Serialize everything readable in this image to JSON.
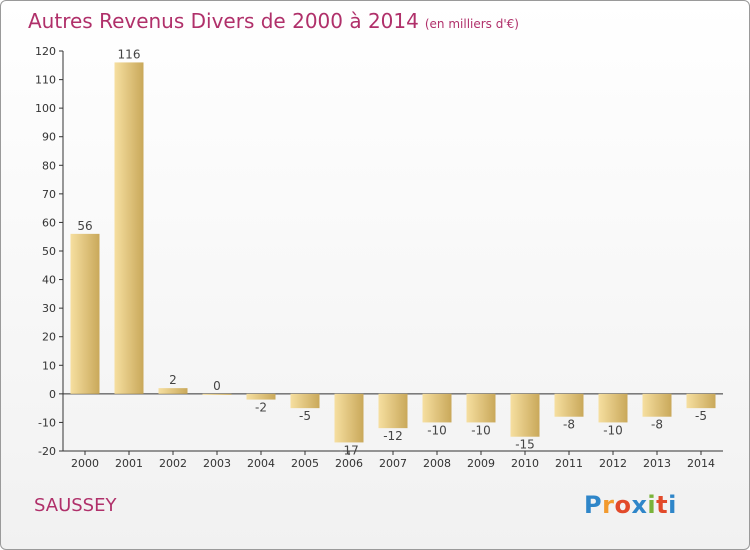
{
  "title": "Autres Revenus Divers de 2000 à 2014",
  "title_unit": "(en milliers d'€)",
  "place": "SAUSSEY",
  "logo": {
    "text": "Proxiti",
    "letters": [
      {
        "ch": "P",
        "color": "#2f86c9"
      },
      {
        "ch": "r",
        "color": "#f29a2e"
      },
      {
        "ch": "o",
        "color": "#e24a2a"
      },
      {
        "ch": "x",
        "color": "#2f86c9"
      },
      {
        "ch": "i",
        "color": "#7ab33a"
      },
      {
        "ch": "t",
        "color": "#e24a2a"
      },
      {
        "ch": "i",
        "color": "#2f86c9"
      }
    ]
  },
  "chart_data": {
    "type": "bar",
    "title": "Autres Revenus Divers de 2000 à 2014",
    "xlabel": "",
    "ylabel": "",
    "categories": [
      "2000",
      "2001",
      "2002",
      "2003",
      "2004",
      "2005",
      "2006",
      "2007",
      "2008",
      "2009",
      "2010",
      "2011",
      "2012",
      "2013",
      "2014"
    ],
    "values": [
      56,
      116,
      2,
      0,
      -2,
      -5,
      -17,
      -12,
      -10,
      -10,
      -15,
      -8,
      -10,
      -8,
      -5
    ],
    "value_labels": [
      "56",
      "116",
      "2",
      "0",
      "-2",
      "-5",
      "-17",
      "-12",
      "-10",
      "-10",
      "-15",
      "-8",
      "-10",
      "-8",
      "-5"
    ],
    "ylim": [
      -20,
      120
    ],
    "yticks": [
      -20,
      -10,
      0,
      10,
      20,
      30,
      40,
      50,
      60,
      70,
      80,
      90,
      100,
      110,
      120
    ],
    "grid": false,
    "colors": {
      "bar_light": "#f6dfa0",
      "bar_dark": "#c9a85a",
      "axis": "#333333",
      "title": "#b0306a"
    }
  }
}
